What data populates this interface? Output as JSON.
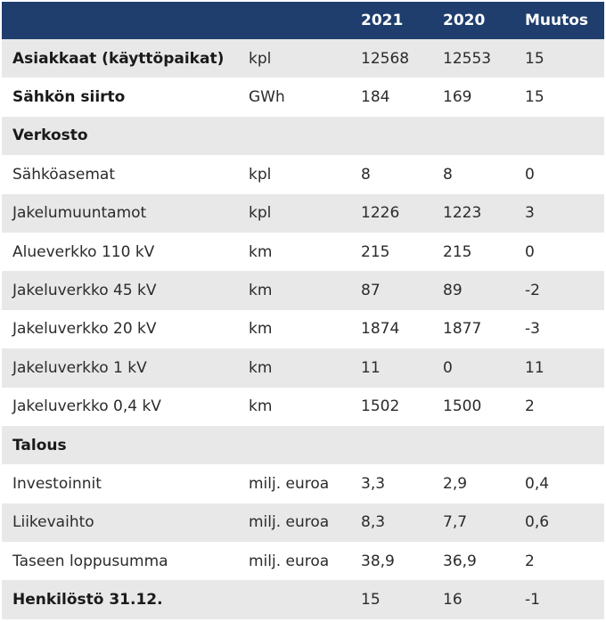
{
  "header": {
    "col1": "",
    "col2": "",
    "col3": "2021",
    "col4": "2020",
    "col5": "Muutos"
  },
  "rows": [
    {
      "label": "Asiakkaat (käyttöpaikat)",
      "unit": "kpl",
      "y2021": "12568",
      "y2020": "12553",
      "change": "15"
    },
    {
      "label": "Sähkön siirto",
      "unit": "GWh",
      "y2021": "184",
      "y2020": "169",
      "change": "15"
    },
    {
      "label": "Verkosto",
      "unit": "",
      "y2021": "",
      "y2020": "",
      "change": ""
    },
    {
      "label": "Sähköasemat",
      "unit": "kpl",
      "y2021": "8",
      "y2020": "8",
      "change": "0"
    },
    {
      "label": "Jakelumuuntamot",
      "unit": "kpl",
      "y2021": "1226",
      "y2020": "1223",
      "change": "3"
    },
    {
      "label": "Alueverkko 110 kV",
      "unit": "km",
      "y2021": "215",
      "y2020": "215",
      "change": "0"
    },
    {
      "label": "Jakeluverkko 45 kV",
      "unit": "km",
      "y2021": "87",
      "y2020": "89",
      "change": "-2"
    },
    {
      "label": "Jakeluverkko 20 kV",
      "unit": "km",
      "y2021": "1874",
      "y2020": "1877",
      "change": "-3"
    },
    {
      "label": "Jakeluverkko 1 kV",
      "unit": "km",
      "y2021": "11",
      "y2020": "0",
      "change": "11"
    },
    {
      "label": "Jakeluverkko 0,4 kV",
      "unit": "km",
      "y2021": "1502",
      "y2020": "1500",
      "change": "2"
    },
    {
      "label": "Talous",
      "unit": "",
      "y2021": "",
      "y2020": "",
      "change": ""
    },
    {
      "label": "Investoinnit",
      "unit": "milj. euroa",
      "y2021": "3,3",
      "y2020": "2,9",
      "change": "0,4"
    },
    {
      "label": "Liikevaihto",
      "unit": "milj. euroa",
      "y2021": "8,3",
      "y2020": "7,7",
      "change": "0,6"
    },
    {
      "label": "Taseen loppusumma",
      "unit": "milj. euroa",
      "y2021": "38,9",
      "y2020": "36,9",
      "change": "2"
    },
    {
      "label": "Henkilöstö 31.12.",
      "unit": "",
      "y2021": "15",
      "y2020": "16",
      "change": "-1"
    }
  ],
  "colors": {
    "header_bg": "#1f3e6d",
    "header_text": "#ffffff",
    "alt_row_bg": "#e8e8e8",
    "text": "#2b2b2b"
  }
}
